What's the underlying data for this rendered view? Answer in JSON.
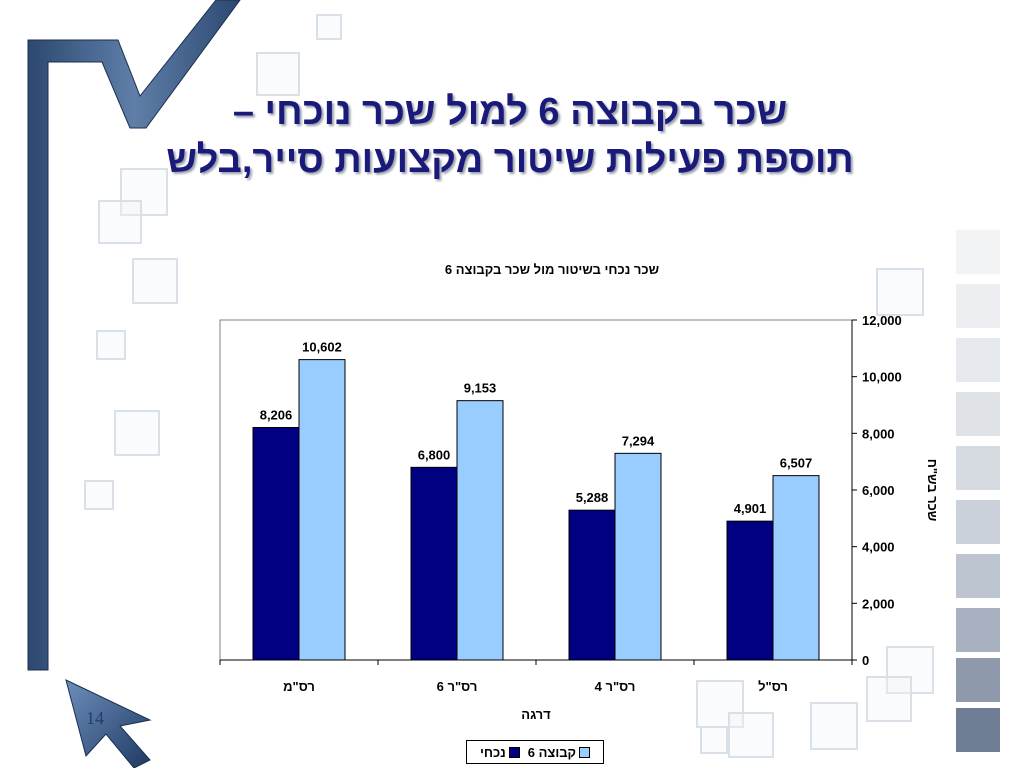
{
  "slide": {
    "title_line1": "שכר בקבוצה 6 למול שכר נוכחי –",
    "title_line2": "תוספת פעילות שיטור מקצועות סייר,בלש",
    "page_number": "14"
  },
  "colors": {
    "current_series": "#000080",
    "group6_series": "#99ccff",
    "title": "#1a1a7a"
  },
  "chart_data": {
    "type": "bar",
    "title": "שכר נכחי בשיטור מול שכר בקבוצה 6",
    "xlabel": "דרגה",
    "ylabel": "שכר בש\"ח",
    "categories": [
      "רס\"מ",
      "רס\"ר 6",
      "רס\"ר 4",
      "רס\"ל"
    ],
    "series": [
      {
        "name": "נכחי",
        "values": [
          8206,
          6800,
          5288,
          4901
        ],
        "labels": [
          "8,206",
          "6,800",
          "5,288",
          "4,901"
        ]
      },
      {
        "name": "קבוצה 6",
        "values": [
          10602,
          9153,
          7294,
          6507
        ],
        "labels": [
          "10,602",
          "9,153",
          "7,294",
          "6,507"
        ]
      }
    ],
    "ylim": [
      0,
      12000
    ],
    "yticks": [
      0,
      2000,
      4000,
      6000,
      8000,
      10000,
      12000
    ],
    "ytick_labels": [
      "0",
      "2,000",
      "4,000",
      "6,000",
      "8,000",
      "10,000",
      "12,000"
    ],
    "y_axis_side": "right",
    "grid": false,
    "legend": "bottom"
  }
}
